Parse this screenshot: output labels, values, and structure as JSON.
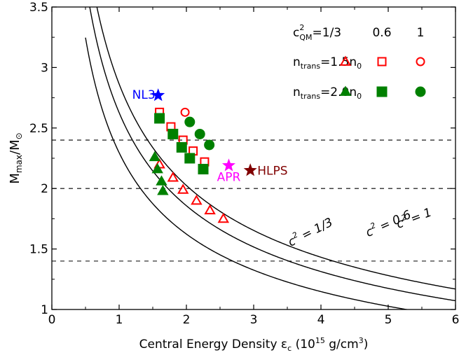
{
  "chart_data": {
    "type": "scatter",
    "title": "",
    "xlabel": "Central Energy Density ε",
    "xlabel_sub": "c",
    "xlabel_unit_pre": " (10",
    "xlabel_unit_sup": "15",
    "xlabel_unit_mid": " g/cm",
    "xlabel_unit_sup2": "3",
    "xlabel_unit_post": ")",
    "ylabel": "M",
    "ylabel_sub": "max",
    "ylabel_mid": "/M",
    "ylabel_sub2": "⊙",
    "xlim": [
      0,
      6
    ],
    "ylim": [
      1,
      3.5
    ],
    "xticks": [
      "0",
      "1",
      "2",
      "3",
      "4",
      "5",
      "6"
    ],
    "yticks": [
      "1",
      "1.5",
      "2",
      "2.5",
      "3",
      "3.5"
    ],
    "xtick_values": [
      0,
      1,
      2,
      3,
      4,
      5,
      6
    ],
    "ytick_values": [
      1,
      1.5,
      2,
      2.5,
      3,
      3.5
    ],
    "hlines": [
      1.4,
      2.0,
      2.4
    ],
    "curves": [
      {
        "label": "c",
        "label_sup": "2",
        "label_post": " = 1",
        "k": 8.2,
        "label_x": 5.15,
        "label_y": 1.67,
        "rotate": -21
      },
      {
        "label": "c",
        "label_sup": "2",
        "label_post": " = 0.6",
        "k": 6.9,
        "label_x": 4.7,
        "label_y": 1.6,
        "rotate": -24
      },
      {
        "label": "c",
        "label_sup": "2",
        "label_post": " = 1/3",
        "k": 5.27,
        "label_x": 3.55,
        "label_y": 1.52,
        "rotate": -27
      }
    ],
    "legend": {
      "header_pre": "c",
      "header_sup": "2",
      "header_sub": "QM",
      "header_post": "=1/3",
      "columns": [
        "0.6",
        "1"
      ],
      "rows": [
        {
          "label_pre": "n",
          "label_sub": "trans",
          "label_post": "=1.5n",
          "label_sub2": "0",
          "color": "#ff0000",
          "filled": false
        },
        {
          "label_pre": "n",
          "label_sub": "trans",
          "label_post": "=2.0n",
          "label_sub2": "0",
          "color": "#008000",
          "filled": true
        }
      ]
    },
    "series": [
      {
        "n_trans": "1.5",
        "c2": "1/3",
        "marker": "triangle",
        "color": "#ff0000",
        "filled": false,
        "x": [
          1.6,
          1.8,
          1.95,
          2.15,
          2.35,
          2.55
        ],
        "y": [
          2.2,
          2.09,
          1.99,
          1.9,
          1.82,
          1.75
        ]
      },
      {
        "n_trans": "1.5",
        "c2": "0.6",
        "marker": "square",
        "color": "#ff0000",
        "filled": false,
        "x": [
          1.6,
          1.77,
          1.95,
          2.1,
          2.27
        ],
        "y": [
          2.63,
          2.51,
          2.4,
          2.31,
          2.22
        ]
      },
      {
        "n_trans": "1.5",
        "c2": "1",
        "marker": "circle",
        "color": "#ff0000",
        "filled": false,
        "x": [
          1.98
        ],
        "y": [
          2.63
        ]
      },
      {
        "n_trans": "2.0",
        "c2": "1/3",
        "marker": "triangle",
        "color": "#008000",
        "filled": true,
        "x": [
          1.53,
          1.57,
          1.63,
          1.65
        ],
        "y": [
          2.26,
          2.16,
          2.06,
          1.98
        ]
      },
      {
        "n_trans": "2.0",
        "c2": "0.6",
        "marker": "square",
        "color": "#008000",
        "filled": true,
        "x": [
          1.6,
          1.8,
          1.93,
          2.05,
          2.25
        ],
        "y": [
          2.58,
          2.45,
          2.34,
          2.25,
          2.16
        ]
      },
      {
        "n_trans": "2.0",
        "c2": "1",
        "marker": "circle",
        "color": "#008000",
        "filled": true,
        "x": [
          2.05,
          2.2,
          2.34
        ],
        "y": [
          2.55,
          2.45,
          2.36
        ]
      }
    ],
    "eos_points": [
      {
        "label": "NL3",
        "x": 1.58,
        "y": 2.77,
        "color": "#0000ff"
      },
      {
        "label": "APR",
        "x": 2.63,
        "y": 2.19,
        "color": "#ff00ff"
      },
      {
        "label": "HLPS",
        "x": 2.95,
        "y": 2.15,
        "color": "#800000"
      }
    ]
  }
}
